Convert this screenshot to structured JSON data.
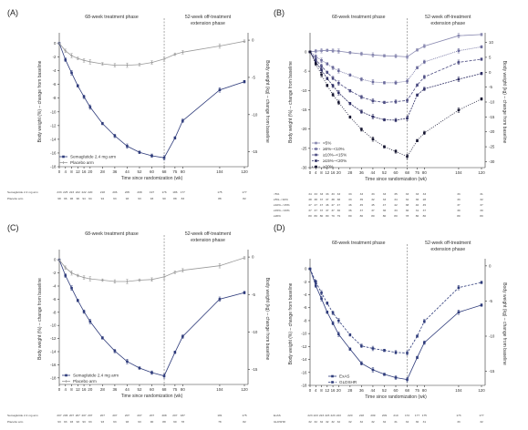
{
  "common": {
    "phase_treatment": "68-week treatment phase",
    "phase_off": "52-week off-treatment",
    "phase_off2": "extension phase",
    "xlabel": "Time since randomization (wk)",
    "ylabel_left": "Body weight (%) – change from baseline",
    "ylabel_right": "Body weight (kg) – change from baseline",
    "xticks": [
      0,
      4,
      8,
      12,
      16,
      20,
      28,
      36,
      44,
      52,
      60,
      68,
      75,
      80,
      104,
      120
    ],
    "xtick_labels": [
      "0",
      "4",
      "8",
      "12",
      "16",
      "20",
      "28",
      "36",
      "44",
      "52",
      "60",
      "68",
      "75",
      "80",
      "104",
      "120"
    ]
  },
  "chart_data": [
    {
      "panel": "(A)",
      "type": "line",
      "x": [
        0,
        4,
        8,
        12,
        16,
        20,
        28,
        36,
        44,
        52,
        60,
        68,
        75,
        80,
        104,
        120
      ],
      "ylim": [
        -18,
        1
      ],
      "yticks": [
        0,
        -2,
        -4,
        -6,
        -8,
        -10,
        -12,
        -14,
        -16,
        -18
      ],
      "yticks_right": [
        0,
        -5,
        -10,
        -15
      ],
      "series": [
        {
          "name": "Semaglutide 2.4 mg arm",
          "color": "#2d3a7a",
          "marker": "square",
          "dash": "",
          "values": [
            0,
            -2.4,
            -4.3,
            -6.2,
            -7.8,
            -9.3,
            -11.7,
            -13.5,
            -15.0,
            -15.9,
            -16.4,
            -16.7,
            -13.8,
            -11.3,
            -6.8,
            -5.6
          ]
        },
        {
          "name": "Placebo arm",
          "color": "#9a9a9a",
          "marker": "cross",
          "dash": "",
          "values": [
            0,
            -1.1,
            -1.8,
            -2.2,
            -2.5,
            -2.7,
            -3.0,
            -3.2,
            -3.2,
            -3.1,
            -2.8,
            -2.3,
            -1.6,
            -1.3,
            -0.4,
            0.3
          ]
        }
      ],
      "table": {
        "rows": [
          {
            "label": "Semaglutide 2.4 mg arm",
            "values": [
              "233",
              "225",
              "223",
              "222",
              "222",
              "220",
              "218",
              "206",
              "205",
              "208",
              "197",
              "176",
              "186",
              "177",
              "175",
              "177"
            ]
          },
          {
            "label": "Placebo arm",
            "values": [
              "98",
              "96",
              "96",
              "96",
              "94",
              "94",
              "94",
              "93",
              "93",
              "93",
              "93",
              "90",
              "88",
              "83",
              "88",
              "82"
            ]
          }
        ]
      }
    },
    {
      "panel": "(B)",
      "type": "line",
      "x": [
        0,
        4,
        8,
        12,
        16,
        20,
        28,
        36,
        44,
        52,
        60,
        68,
        75,
        80,
        104,
        120
      ],
      "ylim": [
        -30,
        4
      ],
      "yticks": [
        0,
        -5,
        -10,
        -15,
        -20,
        -25,
        -30
      ],
      "yticks_right": [
        10,
        5,
        0,
        -5,
        -10,
        -15,
        -20,
        -25,
        -30
      ],
      "series": [
        {
          "name": "<5%",
          "color": "#8888b0",
          "marker": "square",
          "dash": "",
          "values": [
            0,
            0.2,
            0.3,
            0.4,
            0.3,
            0.2,
            -0.2,
            -0.5,
            -0.8,
            -1.0,
            -1.1,
            -1.3,
            0.5,
            1.5,
            4.2,
            4.5
          ]
        },
        {
          "name": "≥5%–<10%",
          "color": "#6b6b9c",
          "marker": "square",
          "dash": "1,1",
          "values": [
            0,
            -1.2,
            -2.2,
            -3.1,
            -4.1,
            -4.9,
            -6.0,
            -7.1,
            -7.8,
            -8.0,
            -8.0,
            -7.6,
            -4.1,
            -2.6,
            0.3,
            1.3
          ]
        },
        {
          "name": "≥10%–<15%",
          "color": "#4a4a80",
          "marker": "square",
          "dash": "3,1.5",
          "values": [
            0,
            -2.0,
            -3.7,
            -5.3,
            -6.8,
            -8.1,
            -10.1,
            -11.7,
            -12.7,
            -13.1,
            -12.9,
            -12.6,
            -8.6,
            -6.5,
            -2.7,
            -1.9
          ]
        },
        {
          "name": "≥15%–<20%",
          "color": "#2e2e64",
          "marker": "square",
          "dash": "2,1",
          "values": [
            0,
            -2.6,
            -4.7,
            -6.9,
            -8.8,
            -10.6,
            -13.4,
            -15.5,
            -16.8,
            -17.6,
            -17.7,
            -17.2,
            -11.2,
            -9.6,
            -7.1,
            -5.6
          ]
        },
        {
          "name": "≥20%",
          "color": "#151530",
          "marker": "square",
          "dash": "1,1.5",
          "values": [
            0,
            -3.1,
            -5.9,
            -8.7,
            -11.1,
            -13.1,
            -16.9,
            -20.1,
            -22.6,
            -24.6,
            -25.8,
            -27.1,
            -23.0,
            -21.0,
            -15.1,
            -12.2
          ]
        }
      ],
      "table": {
        "rows": [
          {
            "label": "<5%",
            "values": [
              "34",
              "33",
              "33",
              "33",
              "33",
              "33",
              "33",
              "33",
              "33",
              "33",
              "35",
              "33",
              "33",
              "33",
              "33",
              "31"
            ]
          },
          {
            "label": "≥5%–<10%",
            "values": [
              "38",
              "38",
              "37",
              "37",
              "38",
              "38",
              "33",
              "35",
              "32",
              "33",
              "34",
              "32",
              "36",
              "28",
              "33",
              "32"
            ]
          },
          {
            "label": "≥10%–<15%",
            "values": [
              "47",
              "47",
              "47",
              "46",
              "47",
              "47",
              "46",
              "45",
              "45",
              "47",
              "42",
              "38",
              "40",
              "45",
              "37",
              "37"
            ]
          },
          {
            "label": "≥15%–<20%",
            "values": [
              "37",
              "37",
              "37",
              "37",
              "37",
              "36",
              "36",
              "37",
              "37",
              "36",
              "33",
              "36",
              "31",
              "37",
              "30",
              "30"
            ]
          },
          {
            "label": "≥20%",
            "values": [
              "80",
              "80",
              "80",
              "80",
              "79",
              "79",
              "80",
              "80",
              "80",
              "80",
              "80",
              "78",
              "80",
              "80",
              "80",
              "80"
            ]
          }
        ]
      }
    },
    {
      "panel": "(C)",
      "type": "line",
      "x": [
        0,
        4,
        8,
        12,
        16,
        20,
        28,
        36,
        44,
        52,
        60,
        68,
        75,
        80,
        104,
        120
      ],
      "ylim": [
        -19,
        1
      ],
      "yticks": [
        0,
        -2,
        -4,
        -6,
        -8,
        -10,
        -12,
        -14,
        -16,
        -18
      ],
      "yticks_right": [
        0,
        -5,
        -10,
        -15
      ],
      "series": [
        {
          "name": "Semaglutide 2.4 mg arm",
          "color": "#2d3a7a",
          "marker": "square",
          "dash": "",
          "values": [
            0,
            -2.4,
            -4.3,
            -6.2,
            -7.9,
            -9.4,
            -11.9,
            -13.9,
            -15.5,
            -16.5,
            -17.2,
            -17.7,
            -14.1,
            -11.7,
            -6.0,
            -5.0
          ]
        },
        {
          "name": "Placebo arm",
          "color": "#9a9a9a",
          "marker": "cross",
          "dash": "",
          "values": [
            0,
            -1.2,
            -2.0,
            -2.4,
            -2.7,
            -2.9,
            -3.1,
            -3.3,
            -3.3,
            -3.1,
            -3.0,
            -2.6,
            -1.9,
            -1.6,
            -0.9,
            0.3
          ]
        }
      ],
      "table": {
        "rows": [
          {
            "label": "Semaglutide 2.4 mg arm",
            "values": [
              "207",
              "206",
              "207",
              "207",
              "207",
              "207",
              "207",
              "207",
              "207",
              "207",
              "207",
              "208",
              "207",
              "187",
              "181",
              "175"
            ]
          },
          {
            "label": "Placebo arm",
            "values": [
              "93",
              "93",
              "93",
              "93",
              "93",
              "93",
              "93",
              "93",
              "93",
              "93",
              "90",
              "88",
              "90",
              "78",
              "78",
              "82"
            ]
          }
        ]
      }
    },
    {
      "panel": "(D)",
      "type": "line",
      "x": [
        0,
        4,
        8,
        12,
        16,
        20,
        28,
        36,
        44,
        52,
        60,
        68,
        75,
        80,
        104,
        120
      ],
      "ylim": [
        -18,
        1
      ],
      "yticks": [
        0,
        -2,
        -4,
        -6,
        -8,
        -10,
        -12,
        -14,
        -16,
        -18
      ],
      "yticks_right": [
        0,
        -5,
        -10,
        -15
      ],
      "series": [
        {
          "name": "ExAS",
          "color": "#2d3a7a",
          "marker": "square",
          "dash": "",
          "values": [
            0,
            -2.6,
            -4.6,
            -6.7,
            -8.4,
            -10.1,
            -12.4,
            -14.6,
            -15.6,
            -16.3,
            -16.8,
            -17.1,
            -13.7,
            -11.4,
            -6.7,
            -5.6
          ]
        },
        {
          "name": "GLDSHR",
          "color": "#2d3a7a",
          "marker": "square",
          "dash": "2.5,1.5",
          "values": [
            0,
            -2.0,
            -3.7,
            -5.3,
            -6.8,
            -8.0,
            -10.2,
            -11.9,
            -12.3,
            -12.6,
            -12.9,
            -13.0,
            -10.4,
            -8.1,
            -2.9,
            -2.1
          ]
        }
      ],
      "table": {
        "rows": [
          {
            "label": "ExAS",
            "values": [
              "223",
              "223",
              "223",
              "223",
              "223",
              "223",
              "220",
              "218",
              "209",
              "209",
              "210",
              "172",
              "177",
              "175",
              "173",
              "177"
            ]
          },
          {
            "label": "GLDSHR",
            "values": [
              "32",
              "32",
              "32",
              "32",
              "32",
              "32",
              "32",
              "32",
              "32",
              "32",
              "31",
              "34",
              "30",
              "31",
              "33",
              "32"
            ]
          }
        ]
      }
    }
  ]
}
